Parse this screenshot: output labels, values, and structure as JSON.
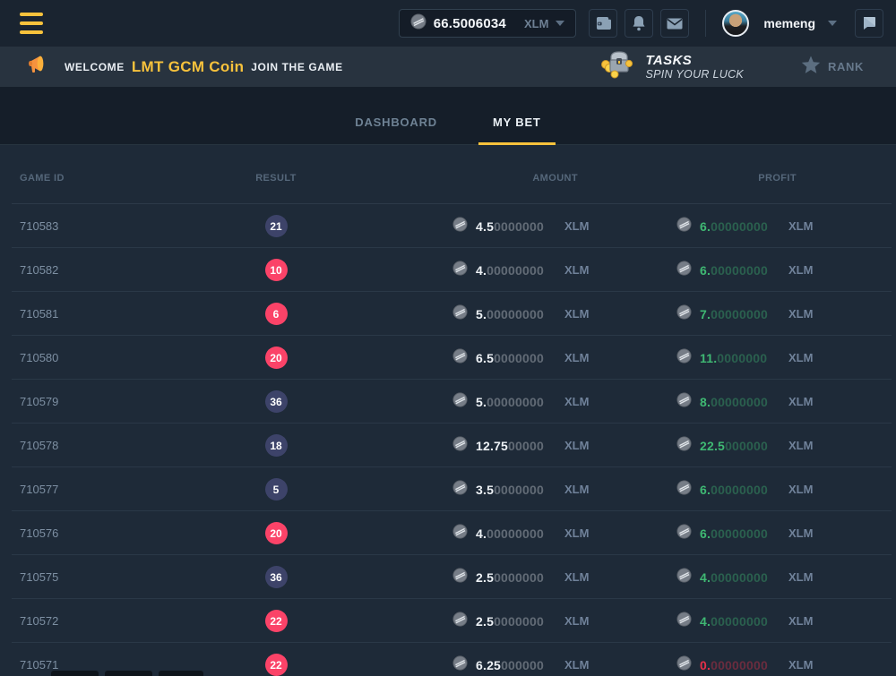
{
  "topbar": {
    "balance": {
      "value": "66.5006034",
      "currency": "XLM"
    },
    "username": "memeng"
  },
  "banner": {
    "welcome_prefix": "WELCOME",
    "coin_name": "LMT GCM Coin",
    "welcome_suffix": "JOIN THE GAME",
    "tasks_title": "TASKS",
    "tasks_subtitle": "SPIN YOUR LUCK",
    "rank_label": "RANK"
  },
  "tabs": [
    {
      "label": "DASHBOARD",
      "active": false
    },
    {
      "label": "MY BET",
      "active": true
    }
  ],
  "table": {
    "headers": {
      "game_id": "GAME ID",
      "result": "RESULT",
      "amount": "AMOUNT",
      "profit": "PROFIT"
    },
    "currency": "XLM",
    "rows": [
      {
        "game_id": "710583",
        "result": "21",
        "badge": "navy",
        "amount_main": "4.5",
        "amount_zeros": "0000000",
        "profit_main": "6.",
        "profit_zeros": "00000000",
        "profit_state": "win"
      },
      {
        "game_id": "710582",
        "result": "10",
        "badge": "red",
        "amount_main": "4.",
        "amount_zeros": "00000000",
        "profit_main": "6.",
        "profit_zeros": "00000000",
        "profit_state": "win"
      },
      {
        "game_id": "710581",
        "result": "6",
        "badge": "red",
        "amount_main": "5.",
        "amount_zeros": "00000000",
        "profit_main": "7.",
        "profit_zeros": "00000000",
        "profit_state": "win"
      },
      {
        "game_id": "710580",
        "result": "20",
        "badge": "red",
        "amount_main": "6.5",
        "amount_zeros": "0000000",
        "profit_main": "11.",
        "profit_zeros": "0000000",
        "profit_state": "win"
      },
      {
        "game_id": "710579",
        "result": "36",
        "badge": "navy",
        "amount_main": "5.",
        "amount_zeros": "00000000",
        "profit_main": "8.",
        "profit_zeros": "00000000",
        "profit_state": "win"
      },
      {
        "game_id": "710578",
        "result": "18",
        "badge": "navy",
        "amount_main": "12.75",
        "amount_zeros": "00000",
        "profit_main": "22.5",
        "profit_zeros": "000000",
        "profit_state": "win"
      },
      {
        "game_id": "710577",
        "result": "5",
        "badge": "navy",
        "amount_main": "3.5",
        "amount_zeros": "0000000",
        "profit_main": "6.",
        "profit_zeros": "00000000",
        "profit_state": "win"
      },
      {
        "game_id": "710576",
        "result": "20",
        "badge": "red",
        "amount_main": "4.",
        "amount_zeros": "00000000",
        "profit_main": "6.",
        "profit_zeros": "00000000",
        "profit_state": "win"
      },
      {
        "game_id": "710575",
        "result": "36",
        "badge": "navy",
        "amount_main": "2.5",
        "amount_zeros": "0000000",
        "profit_main": "4.",
        "profit_zeros": "00000000",
        "profit_state": "win"
      },
      {
        "game_id": "710572",
        "result": "22",
        "badge": "red",
        "amount_main": "2.5",
        "amount_zeros": "0000000",
        "profit_main": "4.",
        "profit_zeros": "00000000",
        "profit_state": "win"
      },
      {
        "game_id": "710571",
        "result": "22",
        "badge": "red",
        "amount_main": "6.25",
        "amount_zeros": "000000",
        "profit_main": "0.",
        "profit_zeros": "00000000",
        "profit_state": "loss"
      }
    ]
  },
  "colors": {
    "accent_yellow": "#f7c23c",
    "badge_red": "#fb4368",
    "badge_navy": "#3d4369",
    "profit_green": "#3fb873",
    "profit_red": "#e63049"
  }
}
